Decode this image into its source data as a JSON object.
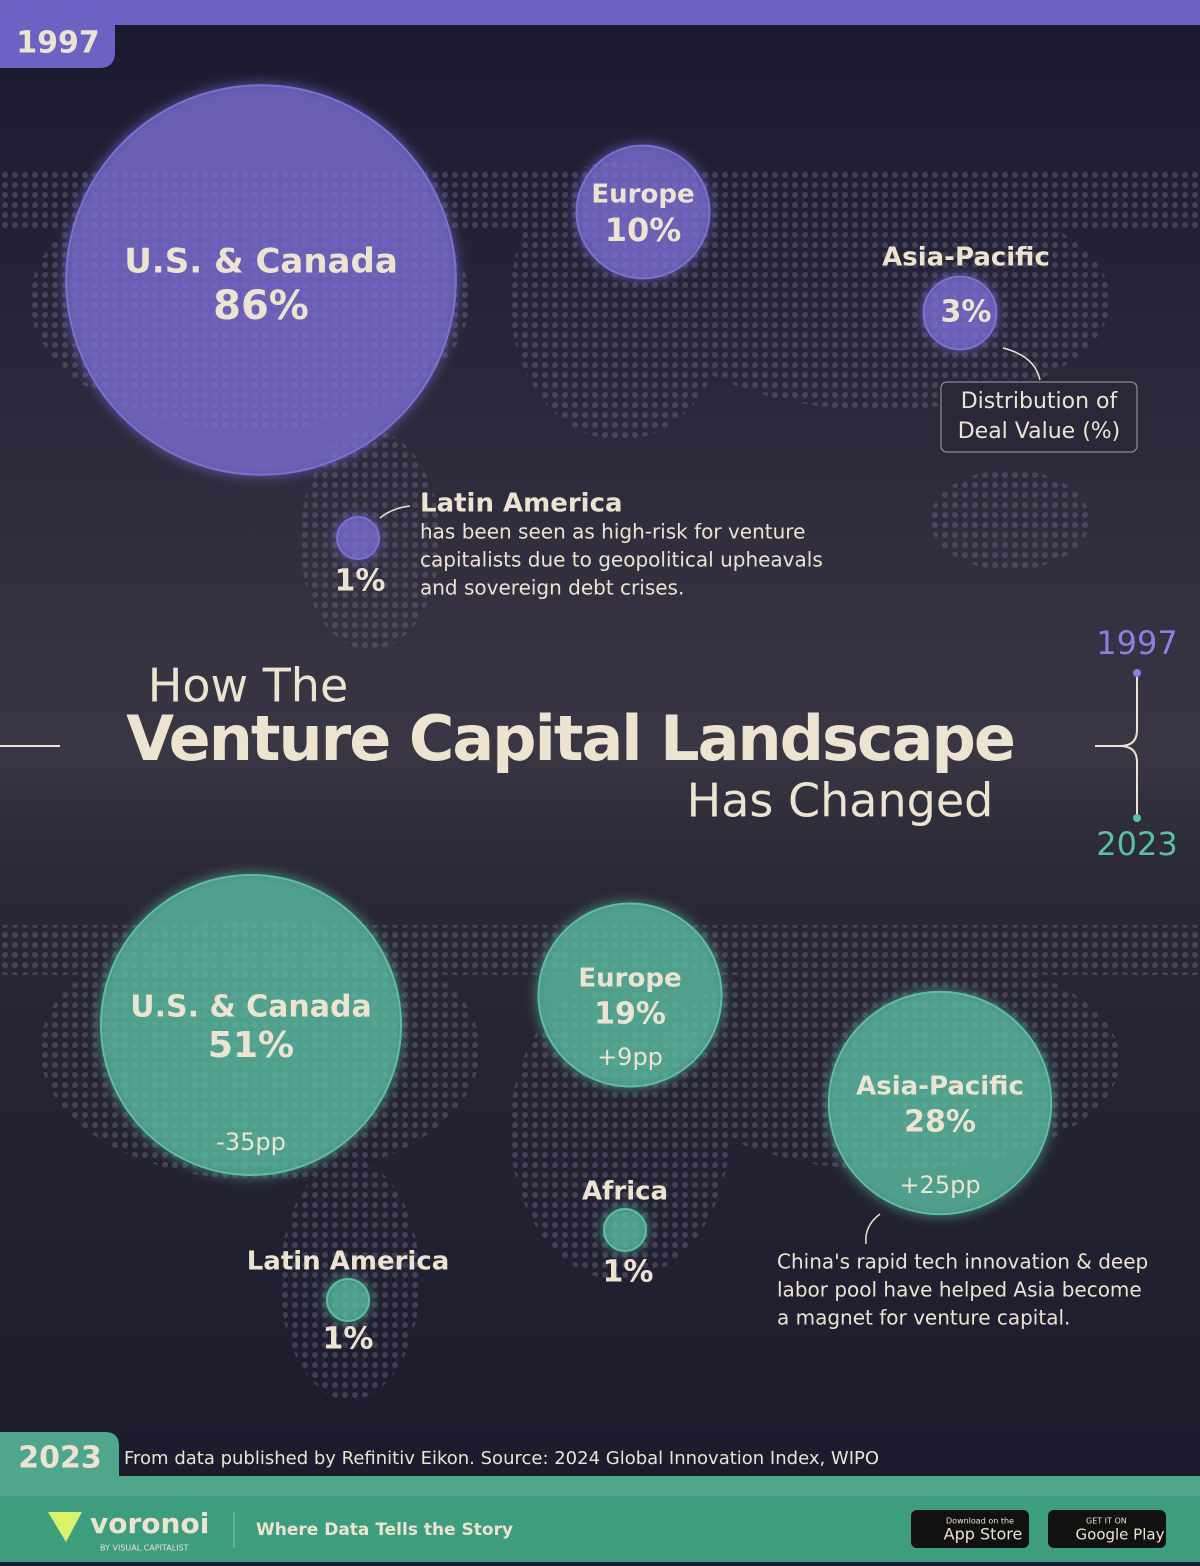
{
  "title": {
    "line1": "How The",
    "line2": "Venture Capital Landscape",
    "line3": "Has Changed"
  },
  "legend": {
    "from": "1997",
    "to": "2023"
  },
  "chart_data": [
    {
      "type": "bubble-map",
      "year": "1997",
      "color": "#7b6fd6",
      "categories": [
        "U.S. & Canada",
        "Europe",
        "Asia-Pacific",
        "Latin America"
      ],
      "values": [
        86,
        10,
        3,
        1
      ],
      "value_labels": [
        "86%",
        "10%",
        "3%",
        "1%"
      ]
    },
    {
      "type": "bubble-map",
      "year": "2023",
      "color": "#5bbfa4",
      "categories": [
        "U.S. & Canada",
        "Europe",
        "Asia-Pacific",
        "Africa",
        "Latin America"
      ],
      "values": [
        51,
        19,
        28,
        1,
        1
      ],
      "value_labels": [
        "51%",
        "19%",
        "28%",
        "1%",
        "1%"
      ],
      "changes": [
        "-35pp",
        "+9pp",
        "+25pp",
        null,
        null
      ]
    }
  ],
  "annotations": {
    "size_note": [
      "Distribution of",
      "Deal Value (%)"
    ],
    "latin_america_note": [
      "has been seen as high-risk for venture",
      "capitalists due to geopolitical upheavals",
      "and sovereign debt crises."
    ],
    "asia_note": [
      "China's rapid tech innovation & deep",
      "labor pool have helped Asia become",
      "a magnet for venture capital."
    ]
  },
  "source": "From data published by Refinitiv Eikon. Source: 2024 Global Innovation Index, WIPO",
  "footer": {
    "brand": "voronoi",
    "sub_brand": "BY VISUAL CAPITALIST",
    "tagline": "Where Data Tells the Story",
    "app_store_small": "Download on the",
    "app_store": "App Store",
    "google_small": "GET IT ON",
    "google": "Google Play"
  }
}
